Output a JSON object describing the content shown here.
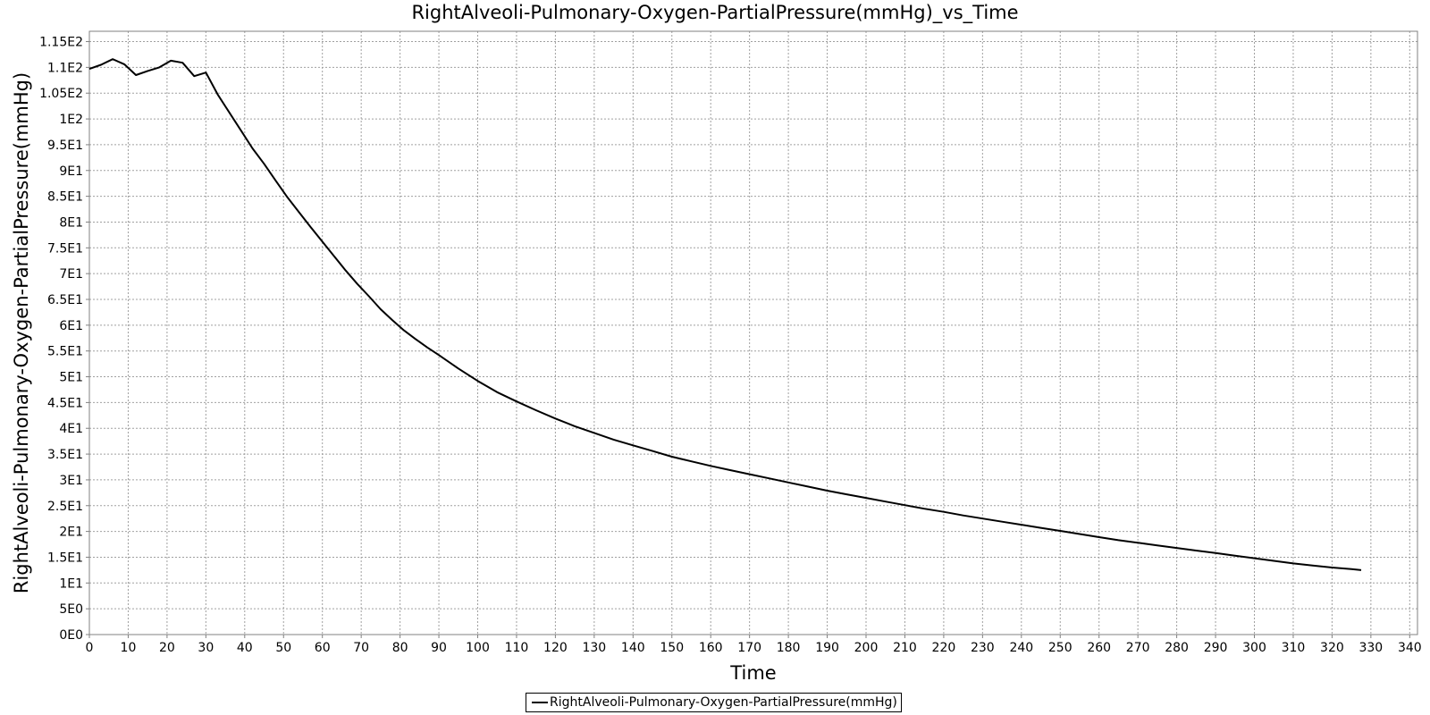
{
  "chart_data": {
    "type": "line",
    "title": "RightAlveoli-Pulmonary-Oxygen-PartialPressure(mmHg)_vs_Time",
    "xlabel": "Time",
    "ylabel": "RightAlveoli-Pulmonary-Oxygen-PartialPressure(mmHg)",
    "xlim": [
      0,
      342
    ],
    "ylim": [
      0,
      117
    ],
    "x_ticks": [
      0,
      10,
      20,
      30,
      40,
      50,
      60,
      70,
      80,
      90,
      100,
      110,
      120,
      130,
      140,
      150,
      160,
      170,
      180,
      190,
      200,
      210,
      220,
      230,
      240,
      250,
      260,
      270,
      280,
      290,
      300,
      310,
      320,
      330,
      340
    ],
    "y_ticks": [
      {
        "value": 0,
        "label": "0E0"
      },
      {
        "value": 5,
        "label": "5E0"
      },
      {
        "value": 10,
        "label": "1E1"
      },
      {
        "value": 15,
        "label": "1.5E1"
      },
      {
        "value": 20,
        "label": "2E1"
      },
      {
        "value": 25,
        "label": "2.5E1"
      },
      {
        "value": 30,
        "label": "3E1"
      },
      {
        "value": 35,
        "label": "3.5E1"
      },
      {
        "value": 40,
        "label": "4E1"
      },
      {
        "value": 45,
        "label": "4.5E1"
      },
      {
        "value": 50,
        "label": "5E1"
      },
      {
        "value": 55,
        "label": "5.5E1"
      },
      {
        "value": 60,
        "label": "6E1"
      },
      {
        "value": 65,
        "label": "6.5E1"
      },
      {
        "value": 70,
        "label": "7E1"
      },
      {
        "value": 75,
        "label": "7.5E1"
      },
      {
        "value": 80,
        "label": "8E1"
      },
      {
        "value": 85,
        "label": "8.5E1"
      },
      {
        "value": 90,
        "label": "9E1"
      },
      {
        "value": 95,
        "label": "9.5E1"
      },
      {
        "value": 100,
        "label": "1E2"
      },
      {
        "value": 105,
        "label": "1.05E2"
      },
      {
        "value": 110,
        "label": "1.1E2"
      },
      {
        "value": 115,
        "label": "1.15E2"
      }
    ],
    "grid": true,
    "legend_position": "bottom-center",
    "series": [
      {
        "name": "RightAlveoli-Pulmonary-Oxygen-PartialPressure(mmHg)",
        "color": "#000000",
        "x": [
          0,
          3,
          6,
          9,
          12,
          15,
          18,
          21,
          24,
          27,
          30,
          33,
          36,
          39,
          42,
          45,
          48,
          51,
          54,
          57,
          60,
          63,
          66,
          69,
          72,
          75,
          78,
          81,
          84,
          87,
          90,
          95,
          100,
          105,
          110,
          115,
          120,
          125,
          130,
          135,
          140,
          145,
          150,
          155,
          160,
          165,
          170,
          175,
          180,
          185,
          190,
          195,
          200,
          205,
          210,
          215,
          220,
          225,
          230,
          235,
          240,
          245,
          250,
          255,
          260,
          265,
          270,
          275,
          280,
          285,
          290,
          295,
          300,
          305,
          310,
          315,
          320,
          325,
          327.5
        ],
        "y": [
          109.7,
          110.5,
          111.6,
          110.6,
          108.5,
          109.3,
          110.0,
          111.3,
          110.9,
          108.3,
          109.0,
          104.8,
          101.3,
          97.8,
          94.3,
          91.3,
          88.0,
          84.8,
          81.9,
          79.0,
          76.2,
          73.4,
          70.6,
          68.0,
          65.6,
          63.1,
          61.0,
          59.0,
          57.3,
          55.7,
          54.2,
          51.6,
          49.2,
          47.0,
          45.2,
          43.5,
          41.9,
          40.4,
          39.1,
          37.8,
          36.7,
          35.6,
          34.5,
          33.6,
          32.7,
          31.9,
          31.1,
          30.3,
          29.5,
          28.7,
          27.9,
          27.2,
          26.5,
          25.8,
          25.1,
          24.4,
          23.8,
          23.1,
          22.5,
          21.9,
          21.3,
          20.7,
          20.1,
          19.5,
          18.9,
          18.3,
          17.8,
          17.3,
          16.8,
          16.3,
          15.8,
          15.3,
          14.8,
          14.3,
          13.8,
          13.4,
          13.0,
          12.7,
          12.5
        ]
      }
    ]
  }
}
